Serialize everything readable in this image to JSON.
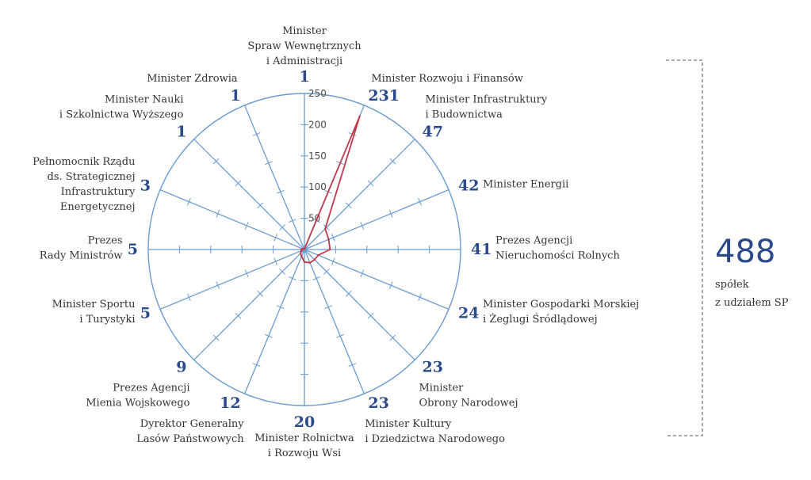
{
  "chart_data": {
    "type": "radar",
    "title": "",
    "ticks": [
      "50",
      "100",
      "150",
      "200",
      "250"
    ],
    "rmax": 250,
    "axis_color": "#6b9bd0",
    "series_color": "#c0394b",
    "value_color": "#2b4a8a",
    "categories": [
      {
        "label": [
          "Minister",
          "Spraw Wewnętrznych",
          "i Administracji"
        ],
        "value": 1,
        "value_text": "1"
      },
      {
        "label": [
          "Minister Rozwoju i Finansów"
        ],
        "value": 231,
        "value_text": "231"
      },
      {
        "label": [
          "Minister Infrastruktury",
          "i Budownictwa"
        ],
        "value": 47,
        "value_text": "47"
      },
      {
        "label": [
          "Minister Energii"
        ],
        "value": 42,
        "value_text": "42"
      },
      {
        "label": [
          "Prezes Agencji",
          "Nieruchomości Rolnych"
        ],
        "value": 41,
        "value_text": "41"
      },
      {
        "label": [
          "Minister Gospodarki Morskiej",
          "i Żeglugi Śródlądowej"
        ],
        "value": 24,
        "value_text": "24"
      },
      {
        "label": [
          "Minister",
          "Obrony Narodowej"
        ],
        "value": 23,
        "value_text": "23"
      },
      {
        "label": [
          "Minister Kultury",
          "i Dziedzictwa Narodowego"
        ],
        "value": 23,
        "value_text": "23"
      },
      {
        "label": [
          "Minister Rolnictwa",
          "i Rozwoju Wsi"
        ],
        "value": 20,
        "value_text": "20"
      },
      {
        "label": [
          "Dyrektor Generalny",
          "Lasów Państwowych"
        ],
        "value": 12,
        "value_text": "12"
      },
      {
        "label": [
          "Prezes Agencji",
          "Mienia Wojskowego"
        ],
        "value": 9,
        "value_text": "9"
      },
      {
        "label": [
          "Minister Sportu",
          "i Turystyki"
        ],
        "value": 5,
        "value_text": "5"
      },
      {
        "label": [
          "Prezes",
          "Rady Ministrów"
        ],
        "value": 5,
        "value_text": "5"
      },
      {
        "label": [
          "Pełnomocnik Rządu",
          "ds. Strategicznej",
          "Infrastruktury",
          "Energetycznej"
        ],
        "value": 3,
        "value_text": "3"
      },
      {
        "label": [
          "Minister Nauki",
          "i Szkolnictwa Wyższego"
        ],
        "value": 1,
        "value_text": "1"
      },
      {
        "label": [
          "Minister Zdrowia"
        ],
        "value": 1,
        "value_text": "1"
      }
    ]
  },
  "summary": {
    "total": "488",
    "line1": "spółek",
    "line2": "z udziałem SP"
  }
}
